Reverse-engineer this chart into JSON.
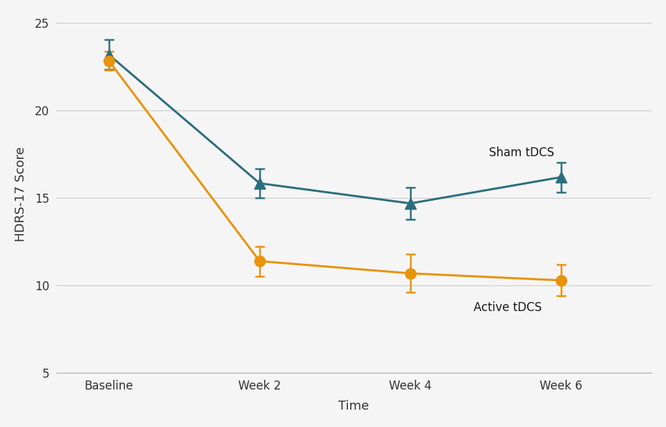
{
  "x_positions": [
    0,
    1,
    2,
    3
  ],
  "x_labels": [
    "Baseline",
    "Week 2",
    "Week 4",
    "Week 6"
  ],
  "sham_means": [
    23.2,
    15.85,
    14.7,
    16.2
  ],
  "sham_errors": [
    0.85,
    0.85,
    0.9,
    0.85
  ],
  "active_means": [
    22.85,
    11.4,
    10.7,
    10.3
  ],
  "active_errors": [
    0.55,
    0.85,
    1.1,
    0.9
  ],
  "sham_color": "#2d6e7e",
  "active_color": "#e8930a",
  "ylabel": "HDRS-17 Score",
  "xlabel": "Time",
  "ylim": [
    5,
    25.5
  ],
  "yticks": [
    5,
    10,
    15,
    20,
    25
  ],
  "sham_label": "Sham tDCS",
  "active_label": "Active tDCS",
  "bg_color": "#f5f5f5",
  "plot_bg_color": "#f5f5f5",
  "grid_color": "#d0d0d0",
  "annotation_color": "#1a1a1a"
}
